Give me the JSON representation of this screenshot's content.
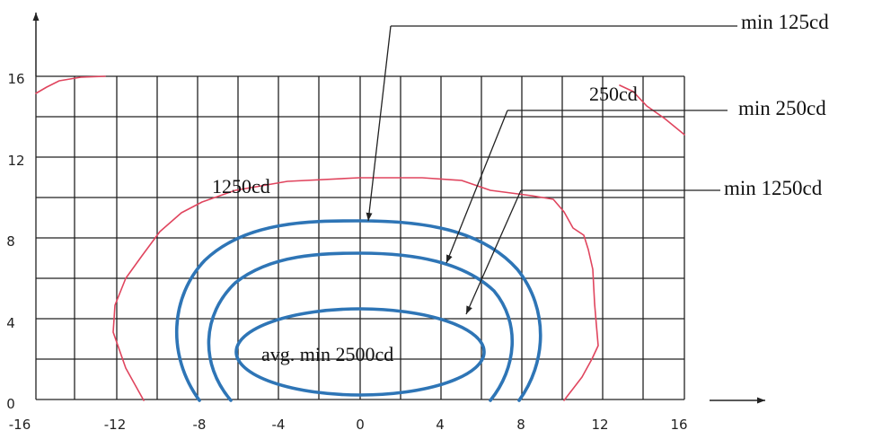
{
  "axes": {
    "x_ticks": [
      "-16",
      "-12",
      "-8",
      "-4",
      "0",
      "4",
      "8",
      "12",
      "16"
    ],
    "y_ticks": [
      "0",
      "4",
      "8",
      "12",
      "16"
    ]
  },
  "labels": {
    "min125": "min 125cd",
    "min250": "min 250cd",
    "min1250": "min 1250cd",
    "iso250": "250cd",
    "iso1250": "1250cd",
    "avg2500": "avg. min 2500cd"
  },
  "colors": {
    "required_contour": "#2e75b6",
    "measured_contour": "#e0455e",
    "grid": "#222222"
  }
}
